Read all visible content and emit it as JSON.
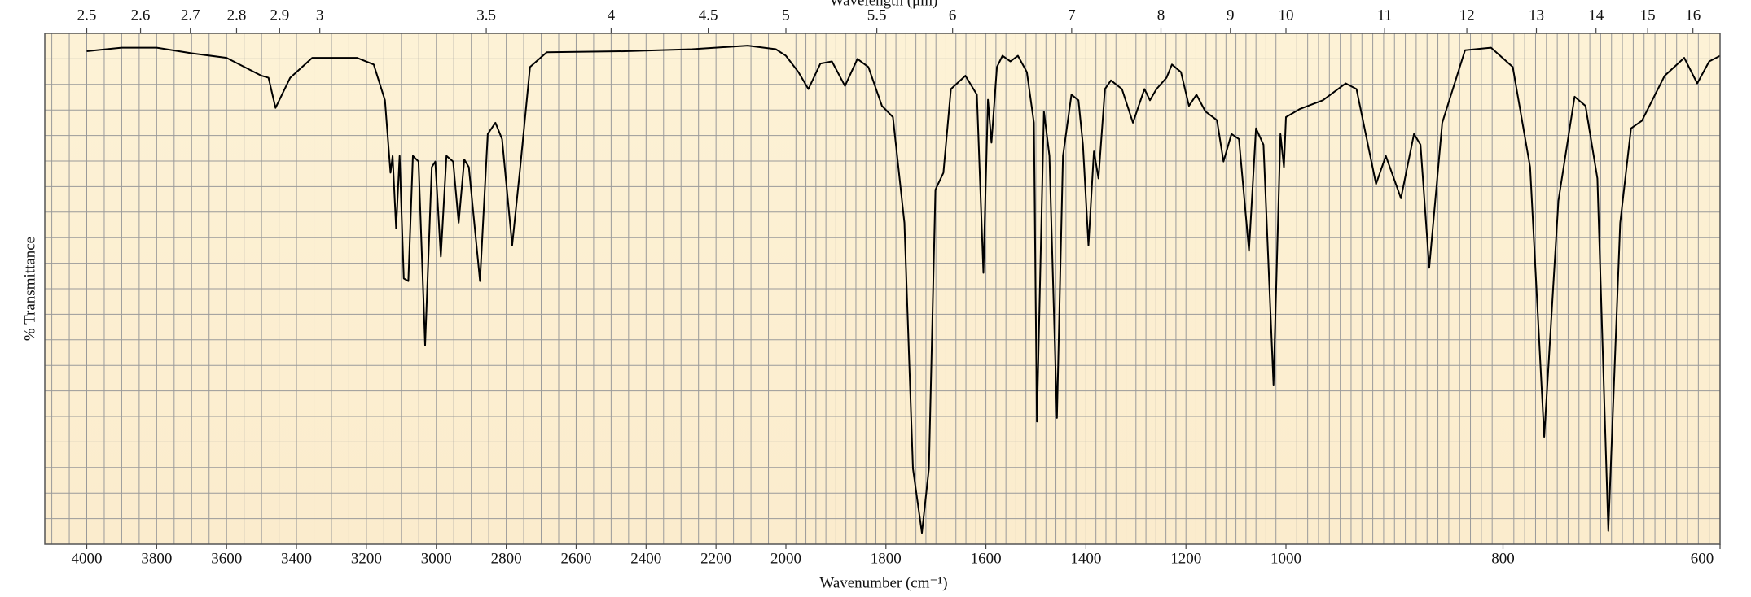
{
  "chart_data": {
    "type": "line",
    "xlabel": "Wavenumber (cm⁻¹)",
    "ylabel": "% Transmittance",
    "x2label": "Wavelength (μm)",
    "color": "#000000",
    "xlim": [
      4120,
      600
    ],
    "xbreaks": [
      2000,
      1000
    ],
    "xticks": [
      4000,
      3800,
      3600,
      3400,
      3200,
      3000,
      2800,
      2600,
      2400,
      2200,
      2000,
      1800,
      1600,
      1400,
      1200,
      1000,
      800,
      600
    ],
    "x2ticks": [
      2.5,
      2.6,
      2.7,
      2.8,
      2.9,
      3,
      3.5,
      4,
      4.5,
      5,
      5.5,
      6,
      7,
      8,
      9,
      10,
      11,
      12,
      13,
      14,
      15,
      16
    ],
    "xgrid_steps": [
      50,
      20,
      10
    ],
    "ylim": [
      0,
      100
    ],
    "ygrid_step": 5,
    "grid": true,
    "x": [
      4000,
      3900,
      3800,
      3700,
      3600,
      3500,
      3480,
      3460,
      3418,
      3355,
      3227,
      3179,
      3147,
      3131,
      3125,
      3115,
      3105,
      3093,
      3080,
      3067,
      3051,
      3032,
      3013,
      3003,
      2987,
      2971,
      2952,
      2936,
      2920,
      2907,
      2875,
      2853,
      2831,
      2812,
      2783,
      2760,
      2732,
      2684,
      2460,
      2268,
      2109,
      2029,
      2000,
      1975,
      1955,
      1931,
      1908,
      1882,
      1857,
      1835,
      1808,
      1786,
      1763,
      1746,
      1728,
      1714,
      1701,
      1685,
      1670,
      1641,
      1618,
      1605,
      1596,
      1589,
      1578,
      1567,
      1551,
      1536,
      1518,
      1504,
      1498,
      1484,
      1473,
      1458,
      1446,
      1429,
      1415,
      1406,
      1395,
      1384,
      1375,
      1362,
      1350,
      1328,
      1306,
      1283,
      1272,
      1259,
      1239,
      1228,
      1210,
      1194,
      1179,
      1161,
      1138,
      1125,
      1109,
      1094,
      1074,
      1060,
      1045,
      1025,
      1011,
      1004,
      1000,
      987,
      966,
      945,
      935,
      917,
      908,
      894,
      882,
      876,
      868,
      856,
      835,
      811,
      791,
      775,
      762,
      749,
      734,
      724,
      713,
      703,
      692,
      682,
      672,
      651,
      633,
      621,
      610,
      600
    ],
    "values": [
      96.5,
      97.2,
      97.2,
      96.1,
      95.2,
      91.7,
      91.3,
      85.4,
      91.3,
      95.2,
      95.2,
      93.9,
      86.9,
      72.7,
      76.0,
      61.8,
      76.0,
      52.0,
      51.5,
      76.0,
      74.9,
      38.9,
      73.8,
      74.9,
      56.3,
      76.0,
      74.9,
      62.9,
      75.3,
      73.8,
      51.5,
      80.3,
      82.5,
      79.3,
      58.5,
      73.8,
      93.4,
      96.3,
      96.5,
      96.9,
      97.6,
      96.9,
      95.6,
      92.4,
      89.1,
      94.1,
      94.5,
      89.7,
      95.0,
      93.4,
      85.8,
      83.6,
      62.9,
      14.8,
      2.2,
      14.8,
      69.4,
      72.7,
      89.1,
      91.7,
      88.0,
      53.1,
      87.0,
      78.6,
      93.4,
      95.6,
      94.5,
      95.6,
      92.4,
      82.5,
      24.0,
      84.7,
      76.0,
      24.7,
      76.0,
      88.0,
      86.9,
      78.2,
      58.5,
      76.9,
      71.6,
      89.1,
      90.8,
      89.1,
      82.5,
      89.1,
      86.9,
      89.1,
      91.3,
      93.9,
      92.4,
      85.8,
      88.0,
      84.7,
      83.0,
      74.9,
      80.3,
      79.3,
      57.4,
      81.4,
      78.2,
      31.2,
      80.3,
      73.8,
      83.6,
      85.2,
      86.9,
      90.2,
      89.1,
      70.5,
      76.0,
      67.7,
      80.3,
      78.2,
      54.1,
      82.5,
      96.7,
      97.2,
      93.4,
      73.8,
      21.0,
      67.2,
      87.6,
      85.8,
      71.6,
      2.6,
      62.9,
      81.4,
      82.9,
      91.7,
      95.2,
      90.2,
      94.5,
      95.6
    ]
  }
}
